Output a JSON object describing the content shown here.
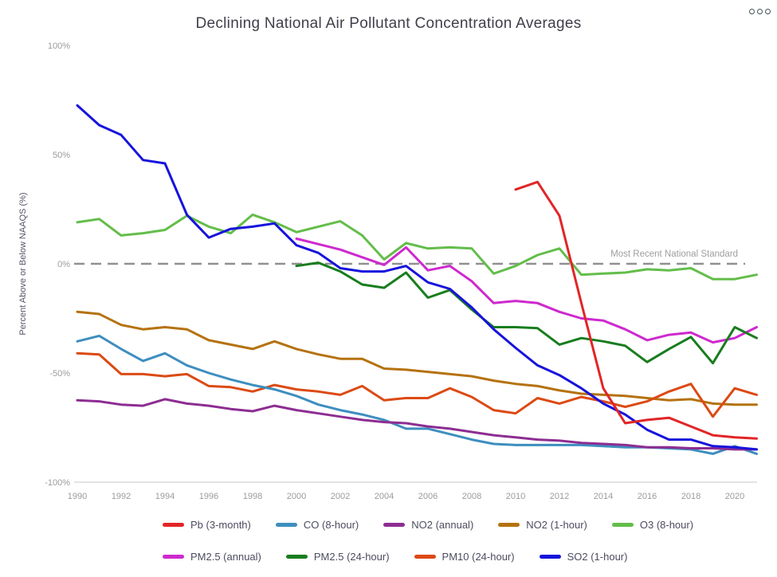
{
  "header": {
    "title": "Declining National Air Pollutant Concentration Averages",
    "menu_icon": "overflow-menu-icon"
  },
  "chart_data": {
    "type": "line",
    "title": "Declining National Air Pollutant Concentration Averages",
    "y_axis_title": "Percent Above or Below NAAQS (%)",
    "ylim": [
      -100,
      100
    ],
    "grid": "off",
    "x_tick_labels": [
      "1990",
      "1992",
      "1994",
      "1996",
      "1998",
      "2000",
      "2002",
      "2004",
      "2006",
      "2008",
      "2010",
      "2012",
      "2014",
      "2016",
      "2018",
      "2020"
    ],
    "y_ticks": [
      {
        "label": "100%",
        "value": 100
      },
      {
        "label": "50%",
        "value": 50
      },
      {
        "label": "0%",
        "value": 0
      },
      {
        "label": "-50%",
        "value": -50
      },
      {
        "label": "-100%",
        "value": -100
      }
    ],
    "reference_line": {
      "value": 0,
      "style": "dashed",
      "color": "#909090"
    },
    "annotation": {
      "text": "Most Recent National Standard",
      "at_value": 0,
      "color": "#9e9e9e"
    },
    "x_start": 1990,
    "x_end": 2021,
    "series": [
      {
        "name": "NO2 (1-hour)",
        "color": "#b5720f",
        "start_year": 1990,
        "values": [
          -22,
          -23,
          -28,
          -30,
          -29,
          -30,
          -35,
          -37,
          -39,
          -35.5,
          -39,
          -41.5,
          -43.5,
          -43.5,
          -48,
          -48.5,
          -49.5,
          -50.5,
          -51.5,
          -53.5,
          -55,
          -56,
          -58,
          -59.5,
          -60,
          -60.5,
          -61.5,
          -62.5,
          -62,
          -64,
          -64.5,
          -64.5
        ]
      },
      {
        "name": "PM10 (24-hour)",
        "color": "#dc4a14",
        "start_year": 1990,
        "values": [
          -41,
          -41.5,
          -50.5,
          -50.5,
          -51.5,
          -50.5,
          -56,
          -56.5,
          -58.5,
          -55.5,
          -57.5,
          -58.5,
          -60,
          -56,
          -62.5,
          -61.5,
          -61.5,
          -57,
          -61,
          -67,
          -68.5,
          -61.5,
          -64,
          -61,
          -63,
          -65.5,
          -63,
          -58.5,
          -55,
          -70,
          -57,
          -60
        ]
      },
      {
        "name": "CO (8-hour)",
        "color": "#3d8ebf",
        "start_year": 1990,
        "values": [
          -35.5,
          -33,
          -39,
          -44.5,
          -41,
          -46.5,
          -50,
          -53,
          -55.5,
          -57.5,
          -60.5,
          -64.5,
          -67,
          -69,
          -71.5,
          -75.5,
          -75.5,
          -78,
          -80.5,
          -82.5,
          -83,
          -83,
          -83,
          -83,
          -83.5,
          -84,
          -84,
          -84.5,
          -85,
          -87,
          -83.5,
          -87
        ]
      },
      {
        "name": "NO2 (annual)",
        "color": "#8d2d92",
        "start_year": 1990,
        "values": [
          -62.5,
          -63,
          -64.5,
          -65,
          -62,
          -64,
          -65,
          -66.5,
          -67.5,
          -65,
          -67,
          -68.5,
          -70,
          -71.5,
          -72.5,
          -73,
          -74.5,
          -75.5,
          -77,
          -78.5,
          -79.5,
          -80.5,
          -81,
          -82,
          -82.5,
          -83,
          -84,
          -84,
          -84.5,
          -84.5,
          -85,
          -85
        ]
      },
      {
        "name": "O3 (8-hour)",
        "color": "#63bd4a",
        "start_year": 1990,
        "values": [
          19,
          20.5,
          13,
          14,
          15.5,
          22,
          17,
          14,
          22.5,
          19,
          14.5,
          17,
          19.5,
          13,
          2,
          9.5,
          7,
          7.5,
          7,
          -4.5,
          -1,
          4,
          7,
          -5,
          -4.5,
          -4,
          -2.5,
          -3,
          -2,
          -7,
          -7,
          -5
        ]
      },
      {
        "name": "PM2.5 (annual)",
        "color": "#ce29ce",
        "start_year": 2000,
        "values": [
          11.5,
          9,
          6.5,
          3,
          -0.5,
          7.5,
          -3,
          -1,
          -8,
          -18,
          -17,
          -18,
          -22,
          -25,
          -26,
          -30,
          -35,
          -32.5,
          -31.5,
          -36,
          -34,
          -29
        ]
      },
      {
        "name": "PM2.5 (24-hour)",
        "color": "#187d1e",
        "start_year": 2000,
        "values": [
          -1,
          0.5,
          -3.5,
          -9.5,
          -11,
          -4,
          -15.5,
          -12,
          -21,
          -29,
          -29,
          -29.5,
          -37,
          -34,
          -35.5,
          -37.5,
          -45,
          -39,
          -33.5,
          -45.5,
          -29,
          -34
        ]
      },
      {
        "name": "SO2 (1-hour)",
        "color": "#1713dc",
        "start_year": 1990,
        "values": [
          72.5,
          63.5,
          59,
          47.5,
          46,
          22.5,
          12,
          16,
          17,
          18.5,
          8.5,
          5,
          -2,
          -3.5,
          -3.5,
          -1,
          -8.5,
          -11.5,
          -20,
          -30,
          -38.5,
          -46.5,
          -51,
          -57,
          -64,
          -69,
          -76,
          -80.5,
          -80.5,
          -83.5,
          -84,
          -85
        ]
      },
      {
        "name": "Pb (3-month)",
        "color": "#e22527",
        "start_year": 2010,
        "values": [
          34,
          37.5,
          22,
          -18,
          -57,
          -73,
          -71.5,
          -70.5,
          -74.5,
          -78.5,
          -79.5,
          -80
        ]
      }
    ],
    "legend_rows": [
      [
        "Pb (3-month)",
        "CO (8-hour)",
        "NO2 (annual)",
        "NO2 (1-hour)",
        "O3 (8-hour)"
      ],
      [
        "PM2.5 (annual)",
        "PM2.5 (24-hour)",
        "PM10 (24-hour)",
        "SO2 (1-hour)"
      ]
    ],
    "legend_position": "bottom"
  }
}
